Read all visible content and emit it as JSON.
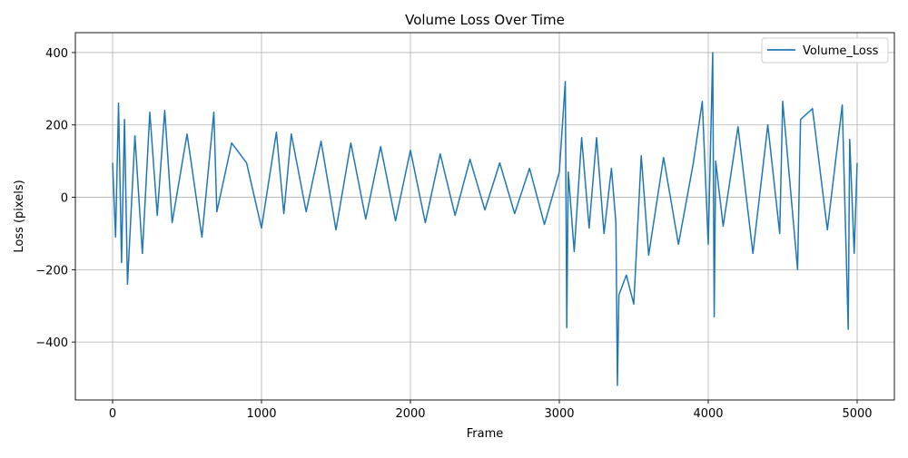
{
  "chart_data": {
    "type": "line",
    "title": "Volume Loss Over Time",
    "xlabel": "Frame",
    "ylabel": "Loss (pixels)",
    "xlim": [
      -250,
      5250
    ],
    "ylim": [
      -560,
      455
    ],
    "x_ticks": [
      0,
      1000,
      2000,
      3000,
      4000,
      5000
    ],
    "x_tick_labels": [
      "0",
      "1000",
      "2000",
      "3000",
      "4000",
      "5000"
    ],
    "y_ticks": [
      -400,
      -200,
      0,
      200,
      400
    ],
    "y_tick_labels": [
      "−400",
      "−200",
      "0",
      "200",
      "400"
    ],
    "grid": true,
    "legend_position": "top-right",
    "series": [
      {
        "name": "Volume_Loss",
        "color": "#1f77b4",
        "x": [
          0,
          20,
          40,
          60,
          80,
          100,
          150,
          200,
          250,
          300,
          350,
          400,
          500,
          600,
          680,
          700,
          800,
          900,
          1000,
          1100,
          1150,
          1200,
          1300,
          1400,
          1500,
          1600,
          1700,
          1800,
          1900,
          2000,
          2100,
          2200,
          2300,
          2400,
          2500,
          2600,
          2700,
          2800,
          2900,
          3000,
          3040,
          3050,
          3060,
          3100,
          3150,
          3200,
          3250,
          3300,
          3350,
          3380,
          3390,
          3400,
          3450,
          3500,
          3550,
          3600,
          3700,
          3800,
          3900,
          3960,
          4000,
          4030,
          4040,
          4050,
          4100,
          4200,
          4300,
          4400,
          4480,
          4500,
          4600,
          4620,
          4700,
          4800,
          4900,
          4940,
          4950,
          4980,
          5000
        ],
        "y": [
          95,
          -110,
          260,
          -180,
          215,
          -240,
          170,
          -155,
          235,
          -50,
          240,
          -70,
          175,
          -110,
          235,
          -40,
          150,
          95,
          -85,
          180,
          -45,
          175,
          -40,
          155,
          -90,
          150,
          -60,
          140,
          -65,
          130,
          -70,
          120,
          -50,
          105,
          -35,
          95,
          -45,
          80,
          -75,
          70,
          320,
          -360,
          70,
          -150,
          165,
          -85,
          165,
          -100,
          80,
          -70,
          -520,
          -270,
          -215,
          -295,
          115,
          -160,
          110,
          -130,
          95,
          265,
          -130,
          400,
          -330,
          100,
          -80,
          195,
          -155,
          200,
          -100,
          265,
          -200,
          215,
          245,
          -90,
          255,
          -365,
          160,
          -155,
          95
        ]
      }
    ]
  }
}
